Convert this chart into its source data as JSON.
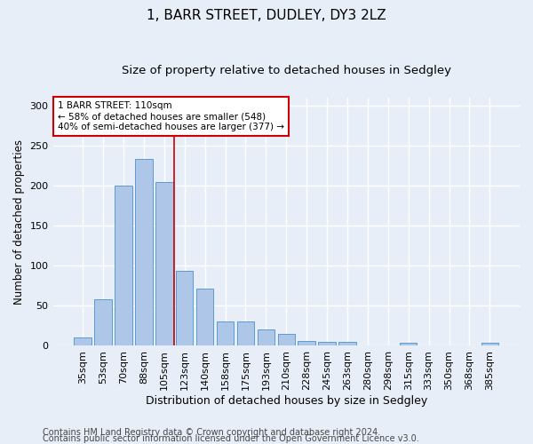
{
  "title1": "1, BARR STREET, DUDLEY, DY3 2LZ",
  "title2": "Size of property relative to detached houses in Sedgley",
  "xlabel": "Distribution of detached houses by size in Sedgley",
  "ylabel": "Number of detached properties",
  "categories": [
    "35sqm",
    "53sqm",
    "70sqm",
    "88sqm",
    "105sqm",
    "123sqm",
    "140sqm",
    "158sqm",
    "175sqm",
    "193sqm",
    "210sqm",
    "228sqm",
    "245sqm",
    "263sqm",
    "280sqm",
    "298sqm",
    "315sqm",
    "333sqm",
    "350sqm",
    "368sqm",
    "385sqm"
  ],
  "values": [
    10,
    58,
    200,
    233,
    205,
    93,
    71,
    30,
    30,
    20,
    14,
    5,
    4,
    4,
    0,
    0,
    3,
    0,
    0,
    0,
    3
  ],
  "bar_color": "#aec6e8",
  "bar_edge_color": "#5b9bd5",
  "annotation_text": "1 BARR STREET: 110sqm\n← 58% of detached houses are smaller (548)\n40% of semi-detached houses are larger (377) →",
  "annotation_box_color": "#ffffff",
  "annotation_box_edge": "#cc0000",
  "vline_color": "#cc0000",
  "vline_x": 4.5,
  "ylim": [
    0,
    310
  ],
  "yticks": [
    0,
    50,
    100,
    150,
    200,
    250,
    300
  ],
  "footer1": "Contains HM Land Registry data © Crown copyright and database right 2024.",
  "footer2": "Contains public sector information licensed under the Open Government Licence v3.0.",
  "background_color": "#e8eef8",
  "grid_color": "#ffffff",
  "title1_fontsize": 11,
  "title2_fontsize": 9.5,
  "xlabel_fontsize": 9,
  "ylabel_fontsize": 8.5,
  "tick_fontsize": 8,
  "footer_fontsize": 7,
  "ann_fontsize": 7.5
}
